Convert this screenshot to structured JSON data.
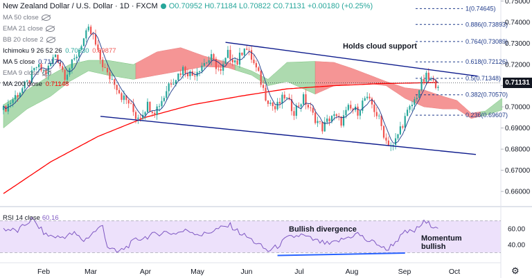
{
  "header": {
    "title": "New Zealand Dollar / U.S. Dollar · 1D · FXCM",
    "ohlc": "O0.70952 H0.71184 L0.70822 C0.71131 +0.00180 (+0.25%)"
  },
  "indicators": [
    {
      "label": "MA 50 close",
      "value": ""
    },
    {
      "label": "EMA 21 close",
      "value": ""
    },
    {
      "label": "BB 20 close 2",
      "value": ""
    },
    {
      "label": "Ichimoku 9 26 52 26",
      "value": "0.70330",
      "value2": "0.69877"
    },
    {
      "label": "MA 5 close",
      "value": "0.71170"
    },
    {
      "label": "EMA 9 close",
      "value": ""
    },
    {
      "label": "MA 200 close",
      "value": "0.71148"
    }
  ],
  "annotations": {
    "cloud": "Holds cloud support",
    "divergence": "Bullish divergence",
    "momentum_line1": "Momentum",
    "momentum_line2": "bullish"
  },
  "current_price": "0.71131",
  "rsi": {
    "label": "RSI 14 close",
    "value": "60.16"
  },
  "colors": {
    "up": "#26a69a",
    "down": "#ef5350",
    "ma200": "#ff0000",
    "ma5": "#1e3a8a",
    "cloud_green": "#a5d6a7",
    "cloud_red": "#f48a8a",
    "channel": "#0d1b8c",
    "fib": "#1e3a8a",
    "rsi_line": "#7e57c2",
    "rsi_bg": "#ede1fb"
  },
  "chart_data": {
    "type": "candlestick",
    "xlabels": [
      "Feb",
      "Mar",
      "Apr",
      "May",
      "Jun",
      "Jul",
      "Aug",
      "Sep",
      "Oct"
    ],
    "yticks": [
      "0.75000",
      "0.74000",
      "0.73000",
      "0.72000",
      "0.71000",
      "0.70000",
      "0.69000",
      "0.68000",
      "0.67000",
      "0.66000"
    ],
    "ylim": [
      0.6535,
      0.7505
    ],
    "fib_levels": [
      {
        "label": "1(0.74645)",
        "value": 0.74645
      },
      {
        "label": "0.886(0.73893)",
        "value": 0.73893
      },
      {
        "label": "0.764(0.73089)",
        "value": 0.73089
      },
      {
        "label": "0.618(0.72126)",
        "value": 0.72126
      },
      {
        "label": "0.5(0.71348)",
        "value": 0.71348
      },
      {
        "label": "0.382(0.70570)",
        "value": 0.7057
      },
      {
        "label": "0.236(0.69607)",
        "value": 0.69607
      }
    ],
    "rsi_ticks": [
      "60.00",
      "40.00"
    ],
    "rsi_ylim": [
      20,
      85
    ],
    "price_anchors": [
      [
        0,
        0.6985
      ],
      [
        5,
        0.705
      ],
      [
        10,
        0.711
      ],
      [
        14,
        0.719
      ],
      [
        18,
        0.716
      ],
      [
        22,
        0.725
      ],
      [
        26,
        0.715
      ],
      [
        30,
        0.722
      ],
      [
        33,
        0.73
      ],
      [
        36,
        0.736
      ],
      [
        38,
        0.733
      ],
      [
        40,
        0.725
      ],
      [
        44,
        0.715
      ],
      [
        47,
        0.712
      ],
      [
        50,
        0.705
      ],
      [
        53,
        0.702
      ],
      [
        56,
        0.6955
      ],
      [
        58,
        0.696
      ],
      [
        61,
        0.701
      ],
      [
        64,
        0.698
      ],
      [
        68,
        0.705
      ],
      [
        70,
        0.711
      ],
      [
        73,
        0.714
      ],
      [
        76,
        0.718
      ],
      [
        80,
        0.715
      ],
      [
        84,
        0.72
      ],
      [
        88,
        0.723
      ],
      [
        92,
        0.716
      ],
      [
        95,
        0.725
      ],
      [
        99,
        0.721
      ],
      [
        102,
        0.729
      ],
      [
        105,
        0.723
      ],
      [
        108,
        0.715
      ],
      [
        111,
        0.705
      ],
      [
        115,
        0.699
      ],
      [
        119,
        0.705
      ],
      [
        123,
        0.698
      ],
      [
        127,
        0.704
      ],
      [
        131,
        0.696
      ],
      [
        135,
        0.69
      ],
      [
        139,
        0.696
      ],
      [
        143,
        0.693
      ],
      [
        146,
        0.699
      ],
      [
        150,
        0.698
      ],
      [
        153,
        0.704
      ],
      [
        156,
        0.701
      ],
      [
        159,
        0.694
      ],
      [
        162,
        0.684
      ],
      [
        165,
        0.681
      ],
      [
        168,
        0.69
      ],
      [
        171,
        0.697
      ],
      [
        174,
        0.703
      ],
      [
        177,
        0.711
      ],
      [
        179,
        0.714
      ],
      [
        182,
        0.711
      ],
      [
        184,
        0.7113
      ]
    ],
    "ma200_anchors": [
      [
        0,
        0.659
      ],
      [
        20,
        0.674
      ],
      [
        40,
        0.686
      ],
      [
        60,
        0.695
      ],
      [
        80,
        0.701
      ],
      [
        100,
        0.705
      ],
      [
        120,
        0.7085
      ],
      [
        140,
        0.71
      ],
      [
        160,
        0.711
      ],
      [
        184,
        0.7115
      ]
    ],
    "cloud_anchors": [
      [
        0,
        0.701,
        0.69
      ],
      [
        10,
        0.708,
        0.699
      ],
      [
        20,
        0.715,
        0.705
      ],
      [
        28,
        0.72,
        0.712
      ],
      [
        36,
        0.722,
        0.717
      ],
      [
        44,
        0.722,
        0.715
      ],
      [
        55,
        0.72,
        0.713
      ],
      [
        65,
        0.726,
        0.715
      ],
      [
        75,
        0.728,
        0.717
      ],
      [
        85,
        0.724,
        0.719
      ],
      [
        95,
        0.721,
        0.7185
      ],
      [
        105,
        0.717,
        0.715
      ],
      [
        112,
        0.713,
        0.71
      ],
      [
        120,
        0.721,
        0.712
      ],
      [
        132,
        0.7215,
        0.706
      ],
      [
        140,
        0.721,
        0.71
      ],
      [
        148,
        0.718,
        0.711
      ],
      [
        155,
        0.715,
        0.711
      ],
      [
        162,
        0.712,
        0.71
      ],
      [
        170,
        0.709,
        0.704
      ],
      [
        178,
        0.708,
        0.7
      ],
      [
        186,
        0.705,
        0.699
      ],
      [
        192,
        0.703,
        0.699
      ],
      [
        198,
        0.697,
        0.6945
      ],
      [
        204,
        0.698,
        0.696
      ],
      [
        211,
        0.704,
        0.6985
      ]
    ],
    "cloud_colors": [
      {
        "from": 0,
        "to": 56,
        "color": "green"
      },
      {
        "from": 56,
        "to": 98,
        "color": "red"
      },
      {
        "from": 98,
        "to": 132,
        "color": "green"
      },
      {
        "from": 132,
        "to": 202,
        "color": "red"
      },
      {
        "from": 202,
        "to": 211,
        "color": "green"
      }
    ],
    "channel_upper": [
      [
        0.7305,
        94
      ],
      [
        0.716,
        186
      ]
    ],
    "channel_lower": [
      [
        0.695,
        44
      ],
      [
        0.6775,
        200
      ]
    ],
    "rsi_anchors": [
      [
        0,
        60
      ],
      [
        6,
        57
      ],
      [
        12,
        72
      ],
      [
        18,
        52
      ],
      [
        24,
        49
      ],
      [
        30,
        54
      ],
      [
        34,
        45
      ],
      [
        38,
        55
      ],
      [
        42,
        64
      ],
      [
        44,
        38
      ],
      [
        48,
        30
      ],
      [
        52,
        37
      ],
      [
        56,
        46
      ],
      [
        62,
        51
      ],
      [
        68,
        56
      ],
      [
        72,
        54
      ],
      [
        78,
        58
      ],
      [
        84,
        52
      ],
      [
        90,
        59
      ],
      [
        96,
        64
      ],
      [
        100,
        55
      ],
      [
        104,
        48
      ],
      [
        108,
        40
      ],
      [
        112,
        32
      ],
      [
        116,
        38
      ],
      [
        120,
        48
      ],
      [
        126,
        52
      ],
      [
        132,
        45
      ],
      [
        138,
        40
      ],
      [
        144,
        47
      ],
      [
        150,
        54
      ],
      [
        154,
        45
      ],
      [
        158,
        42
      ],
      [
        162,
        33
      ],
      [
        166,
        44
      ],
      [
        170,
        55
      ],
      [
        174,
        57
      ],
      [
        178,
        68
      ],
      [
        182,
        64
      ],
      [
        184,
        63
      ]
    ],
    "rsi_divergence": [
      [
        26.5,
        116
      ],
      [
        29.5,
        170
      ]
    ]
  }
}
